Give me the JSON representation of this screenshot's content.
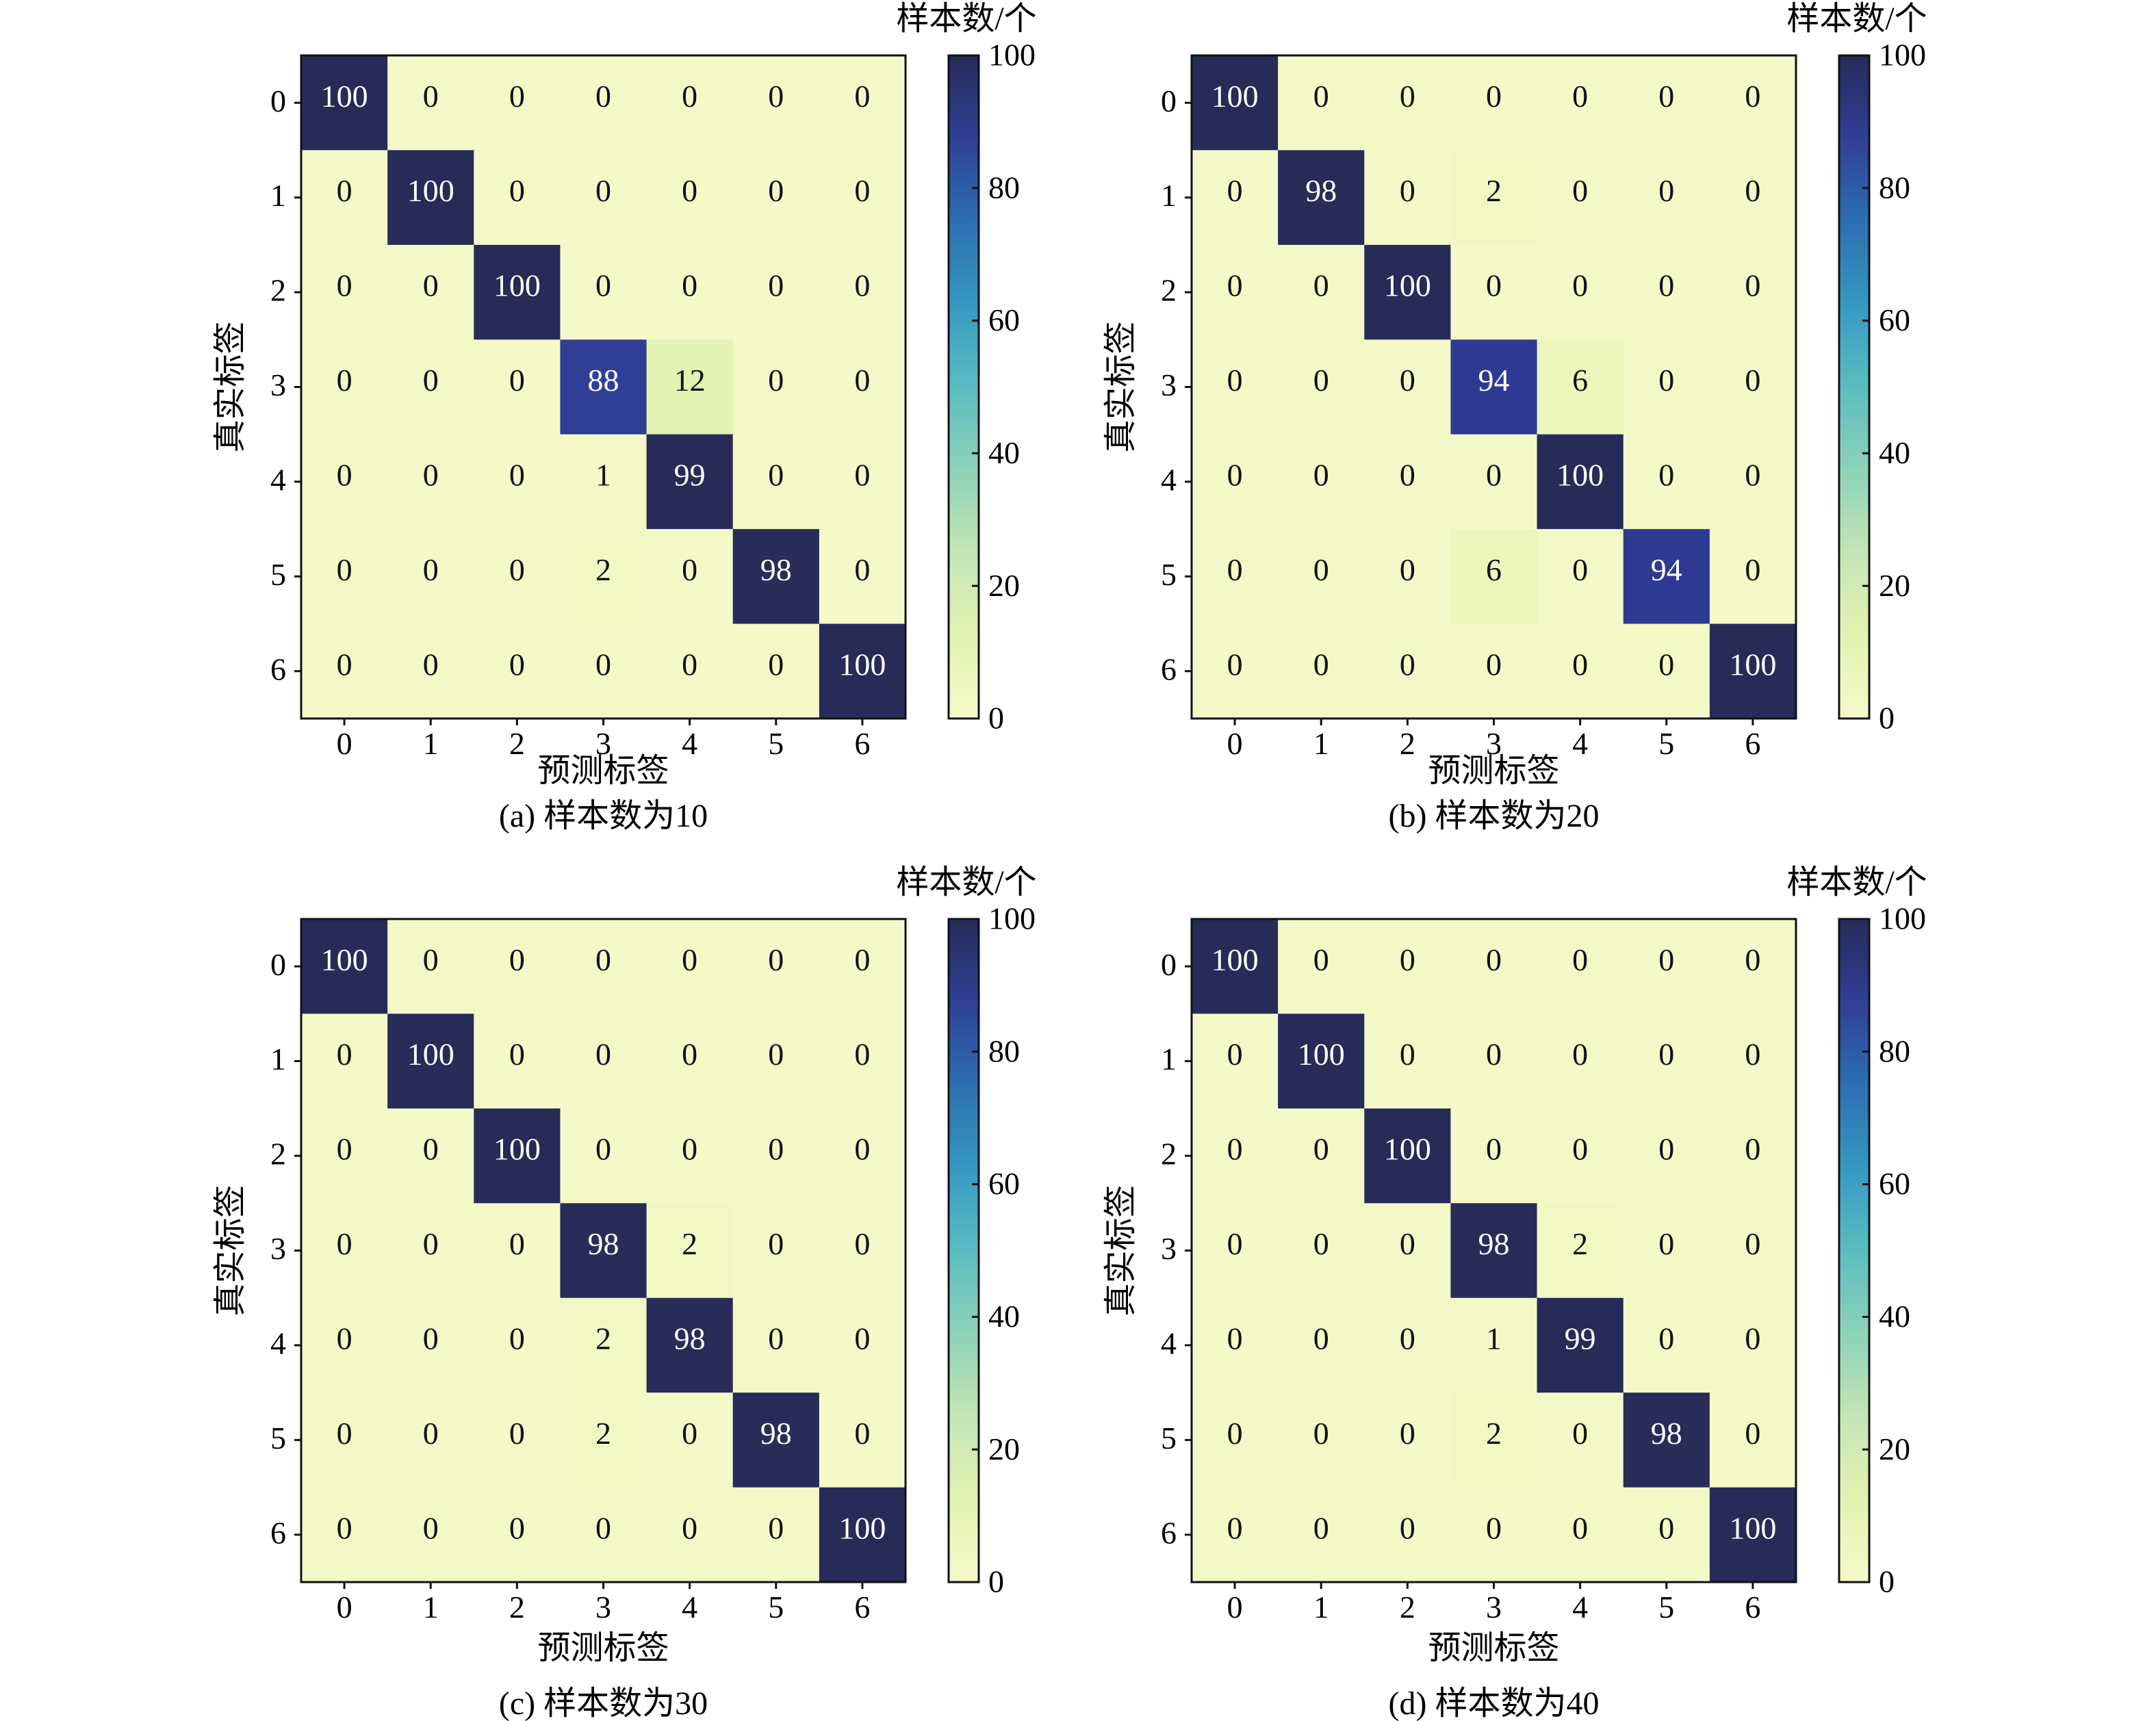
{
  "colormap": "YlGnBu",
  "colors": {
    "min": "#f4f9c8",
    "max": "#262b57"
  },
  "chart_data": [
    {
      "type": "heatmap",
      "caption": "(a) 样本数为10",
      "xlabel": "预测标签",
      "ylabel": "真实标签",
      "x_ticks": [
        "0",
        "1",
        "2",
        "3",
        "4",
        "5",
        "6"
      ],
      "y_ticks": [
        "0",
        "1",
        "2",
        "3",
        "4",
        "5",
        "6"
      ],
      "colorbar": {
        "title": "样本数/个",
        "range": [
          0,
          100
        ],
        "ticks": [
          "0",
          "20",
          "40",
          "60",
          "80",
          "100"
        ]
      },
      "matrix": [
        [
          100,
          0,
          0,
          0,
          0,
          0,
          0
        ],
        [
          0,
          100,
          0,
          0,
          0,
          0,
          0
        ],
        [
          0,
          0,
          100,
          0,
          0,
          0,
          0
        ],
        [
          0,
          0,
          0,
          88,
          12,
          0,
          0
        ],
        [
          0,
          0,
          0,
          1,
          99,
          0,
          0
        ],
        [
          0,
          0,
          0,
          2,
          0,
          98,
          0
        ],
        [
          0,
          0,
          0,
          0,
          0,
          0,
          100
        ]
      ]
    },
    {
      "type": "heatmap",
      "caption": "(b) 样本数为20",
      "xlabel": "预测标签",
      "ylabel": "真实标签",
      "x_ticks": [
        "0",
        "1",
        "2",
        "3",
        "4",
        "5",
        "6"
      ],
      "y_ticks": [
        "0",
        "1",
        "2",
        "3",
        "4",
        "5",
        "6"
      ],
      "colorbar": {
        "title": "样本数/个",
        "range": [
          0,
          100
        ],
        "ticks": [
          "0",
          "20",
          "40",
          "60",
          "80",
          "100"
        ]
      },
      "matrix": [
        [
          100,
          0,
          0,
          0,
          0,
          0,
          0
        ],
        [
          0,
          98,
          0,
          2,
          0,
          0,
          0
        ],
        [
          0,
          0,
          100,
          0,
          0,
          0,
          0
        ],
        [
          0,
          0,
          0,
          94,
          6,
          0,
          0
        ],
        [
          0,
          0,
          0,
          0,
          100,
          0,
          0
        ],
        [
          0,
          0,
          0,
          6,
          0,
          94,
          0
        ],
        [
          0,
          0,
          0,
          0,
          0,
          0,
          100
        ]
      ]
    },
    {
      "type": "heatmap",
      "caption": "(c) 样本数为30",
      "xlabel": "预测标签",
      "ylabel": "真实标签",
      "x_ticks": [
        "0",
        "1",
        "2",
        "3",
        "4",
        "5",
        "6"
      ],
      "y_ticks": [
        "0",
        "1",
        "2",
        "3",
        "4",
        "5",
        "6"
      ],
      "colorbar": {
        "title": "样本数/个",
        "range": [
          0,
          100
        ],
        "ticks": [
          "0",
          "20",
          "40",
          "60",
          "80",
          "100"
        ]
      },
      "matrix": [
        [
          100,
          0,
          0,
          0,
          0,
          0,
          0
        ],
        [
          0,
          100,
          0,
          0,
          0,
          0,
          0
        ],
        [
          0,
          0,
          100,
          0,
          0,
          0,
          0
        ],
        [
          0,
          0,
          0,
          98,
          2,
          0,
          0
        ],
        [
          0,
          0,
          0,
          2,
          98,
          0,
          0
        ],
        [
          0,
          0,
          0,
          2,
          0,
          98,
          0
        ],
        [
          0,
          0,
          0,
          0,
          0,
          0,
          100
        ]
      ]
    },
    {
      "type": "heatmap",
      "caption": "(d) 样本数为40",
      "xlabel": "预测标签",
      "ylabel": "真实标签",
      "x_ticks": [
        "0",
        "1",
        "2",
        "3",
        "4",
        "5",
        "6"
      ],
      "y_ticks": [
        "0",
        "1",
        "2",
        "3",
        "4",
        "5",
        "6"
      ],
      "colorbar": {
        "title": "样本数/个",
        "range": [
          0,
          100
        ],
        "ticks": [
          "0",
          "20",
          "40",
          "60",
          "80",
          "100"
        ]
      },
      "matrix": [
        [
          100,
          0,
          0,
          0,
          0,
          0,
          0
        ],
        [
          0,
          100,
          0,
          0,
          0,
          0,
          0
        ],
        [
          0,
          0,
          100,
          0,
          0,
          0,
          0
        ],
        [
          0,
          0,
          0,
          98,
          2,
          0,
          0
        ],
        [
          0,
          0,
          0,
          1,
          99,
          0,
          0
        ],
        [
          0,
          0,
          0,
          2,
          0,
          98,
          0
        ],
        [
          0,
          0,
          0,
          0,
          0,
          0,
          100
        ]
      ]
    }
  ]
}
